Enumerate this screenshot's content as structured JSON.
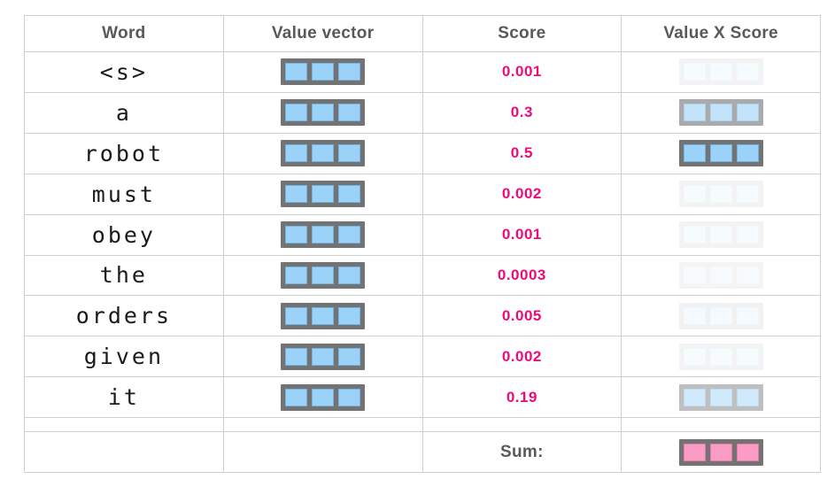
{
  "colors": {
    "score-pink": "#ee0a78",
    "cell-blue": "#9bd2f8",
    "frame-gray": "#737373",
    "header-gray": "#595959",
    "grid-border": "#cfcfcf",
    "sum-pink": "#fb9cc4",
    "word-black": "#1a1a1a"
  },
  "table": {
    "headers": [
      "Word",
      "Value vector",
      "Score",
      "Value X Score"
    ],
    "vector_cells_per_row": 3,
    "rows": [
      {
        "word": "<s>",
        "score": "0.001",
        "vxs_opacity": 0.08
      },
      {
        "word": "a",
        "score": "0.3",
        "vxs_opacity": 0.6
      },
      {
        "word": "robot",
        "score": "0.5",
        "vxs_opacity": 1.0
      },
      {
        "word": "must",
        "score": "0.002",
        "vxs_opacity": 0.08
      },
      {
        "word": "obey",
        "score": "0.001",
        "vxs_opacity": 0.08
      },
      {
        "word": "the",
        "score": "0.0003",
        "vxs_opacity": 0.07
      },
      {
        "word": "orders",
        "score": "0.005",
        "vxs_opacity": 0.09
      },
      {
        "word": "given",
        "score": "0.002",
        "vxs_opacity": 0.08
      },
      {
        "word": "it",
        "score": "0.19",
        "vxs_opacity": 0.45
      }
    ],
    "sum_label": "Sum:"
  }
}
